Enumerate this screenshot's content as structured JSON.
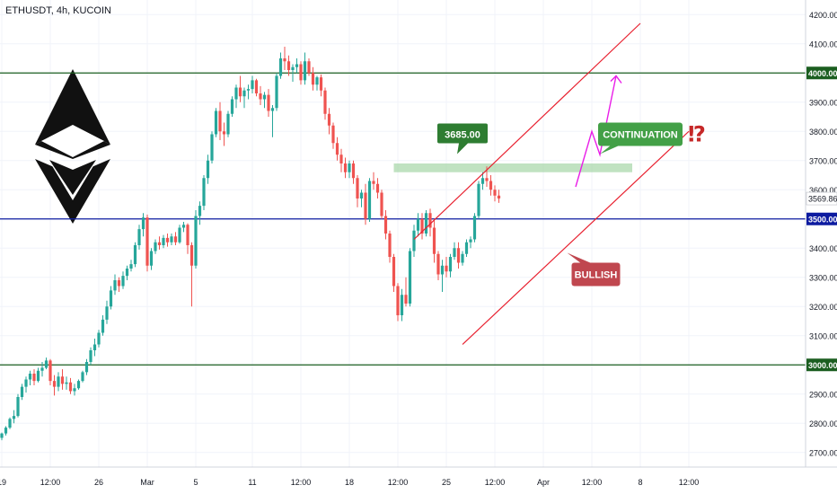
{
  "header": {
    "symbol_line": "ETHUSDT, 4h, KUCOIN"
  },
  "colors": {
    "bull": "#26a69a",
    "bear": "#ef5350",
    "level_green": "#1b5e20",
    "level_blue": "#0d1ba0",
    "channel": "#e8202f",
    "projection": "#e91ee8",
    "zone": "#a5d6a7",
    "callout_green": "#43a047",
    "callout_red": "#c0474f",
    "grid": "#f0f3fa"
  },
  "chart_data": {
    "type": "candlestick",
    "ylim": [
      2650,
      4250
    ],
    "y_ticks": [
      2700,
      2800,
      2900,
      3000,
      3100,
      3200,
      3300,
      3400,
      3500,
      3600,
      3700,
      3800,
      3900,
      4000,
      4100,
      4200
    ],
    "y_tick_labels": [
      "2700.00",
      "2800.00",
      "2900.00",
      "3000.00",
      "3100.00",
      "3200.00",
      "3300.00",
      "3400.00",
      "3500.00",
      "3600.00",
      "3700.00",
      "3800.00",
      "3900.00",
      "4000.00",
      "4100.00",
      "4200.00"
    ],
    "x_tick_labels": [
      "19",
      "12:00",
      "26",
      "Mar",
      "5",
      "11",
      "12:00",
      "18",
      "12:00",
      "25",
      "12:00",
      "Apr",
      "12:00",
      "8",
      "12:00"
    ],
    "x_tick_bars": [
      0,
      12,
      24,
      36,
      48,
      62,
      74,
      86,
      98,
      110,
      122,
      134,
      146,
      158,
      170
    ],
    "current_price": 3569.86,
    "current_price_label": "3569.86",
    "horizontal_levels": [
      {
        "price": 4000,
        "label": "4000.00",
        "color": "#1b5e20"
      },
      {
        "price": 3500,
        "label": "3500.00",
        "color": "#0d1ba0"
      },
      {
        "price": 3000,
        "label": "3000.00",
        "color": "#1b5e20"
      }
    ],
    "resistance_zone": {
      "price_low": 3660,
      "price_high": 3690,
      "bar_start": 97,
      "bar_end": 156,
      "label": "3685.00"
    },
    "channel_lines": [
      {
        "bar1": 102,
        "p1": 3430,
        "bar2": 158,
        "p2": 4170
      },
      {
        "bar1": 114,
        "p1": 3070,
        "bar2": 170,
        "p2": 3800
      }
    ],
    "projection_path": [
      [
        142,
        3610
      ],
      [
        146,
        3800
      ],
      [
        148,
        3720
      ],
      [
        152,
        3990
      ]
    ],
    "annotations": [
      {
        "text": "CONTINUATION",
        "bar": 158,
        "price": 3790,
        "color": "#43a047"
      },
      {
        "text": "BULLISH",
        "bar": 147,
        "price": 3310,
        "color": "#c0474f"
      },
      {
        "text": "⁉",
        "bar": 172,
        "price": 3790,
        "color": "#c62828"
      }
    ],
    "candles": [
      [
        2750,
        2768,
        2742,
        2765
      ],
      [
        2765,
        2790,
        2758,
        2785
      ],
      [
        2785,
        2820,
        2780,
        2815
      ],
      [
        2815,
        2845,
        2800,
        2825
      ],
      [
        2825,
        2900,
        2820,
        2890
      ],
      [
        2890,
        2935,
        2880,
        2925
      ],
      [
        2925,
        2960,
        2905,
        2950
      ],
      [
        2950,
        2980,
        2930,
        2970
      ],
      [
        2970,
        2985,
        2930,
        2945
      ],
      [
        2945,
        2990,
        2940,
        2980
      ],
      [
        2980,
        3010,
        2960,
        2990
      ],
      [
        2990,
        3025,
        2985,
        3015
      ],
      [
        3015,
        3020,
        2930,
        2945
      ],
      [
        2945,
        2965,
        2895,
        2925
      ],
      [
        2925,
        2975,
        2910,
        2960
      ],
      [
        2960,
        2985,
        2915,
        2935
      ],
      [
        2935,
        2960,
        2915,
        2940
      ],
      [
        2940,
        2955,
        2900,
        2910
      ],
      [
        2910,
        2935,
        2895,
        2920
      ],
      [
        2920,
        2950,
        2915,
        2945
      ],
      [
        2945,
        2980,
        2940,
        2975
      ],
      [
        2975,
        3020,
        2965,
        3010
      ],
      [
        3010,
        3060,
        3000,
        3050
      ],
      [
        3050,
        3090,
        3030,
        3070
      ],
      [
        3070,
        3120,
        3060,
        3110
      ],
      [
        3110,
        3170,
        3100,
        3155
      ],
      [
        3155,
        3220,
        3140,
        3200
      ],
      [
        3200,
        3270,
        3190,
        3255
      ],
      [
        3255,
        3310,
        3240,
        3290
      ],
      [
        3290,
        3300,
        3250,
        3270
      ],
      [
        3270,
        3320,
        3260,
        3305
      ],
      [
        3305,
        3340,
        3290,
        3330
      ],
      [
        3330,
        3360,
        3320,
        3345
      ],
      [
        3345,
        3420,
        3335,
        3410
      ],
      [
        3410,
        3480,
        3395,
        3465
      ],
      [
        3465,
        3520,
        3440,
        3505
      ],
      [
        3505,
        3515,
        3320,
        3340
      ],
      [
        3340,
        3400,
        3325,
        3390
      ],
      [
        3390,
        3430,
        3380,
        3420
      ],
      [
        3420,
        3440,
        3395,
        3410
      ],
      [
        3410,
        3445,
        3400,
        3435
      ],
      [
        3435,
        3450,
        3405,
        3420
      ],
      [
        3420,
        3450,
        3410,
        3440
      ],
      [
        3440,
        3455,
        3410,
        3420
      ],
      [
        3420,
        3480,
        3415,
        3470
      ],
      [
        3470,
        3490,
        3455,
        3480
      ],
      [
        3480,
        3485,
        3380,
        3410
      ],
      [
        3410,
        3420,
        3200,
        3340
      ],
      [
        3340,
        3530,
        3330,
        3510
      ],
      [
        3510,
        3560,
        3480,
        3545
      ],
      [
        3545,
        3650,
        3530,
        3640
      ],
      [
        3640,
        3720,
        3620,
        3700
      ],
      [
        3700,
        3800,
        3690,
        3790
      ],
      [
        3790,
        3880,
        3780,
        3870
      ],
      [
        3870,
        3900,
        3770,
        3800
      ],
      [
        3800,
        3830,
        3750,
        3790
      ],
      [
        3790,
        3870,
        3780,
        3860
      ],
      [
        3860,
        3920,
        3850,
        3910
      ],
      [
        3910,
        3960,
        3880,
        3950
      ],
      [
        3950,
        3990,
        3900,
        3920
      ],
      [
        3920,
        3950,
        3880,
        3940
      ],
      [
        3940,
        3960,
        3910,
        3945
      ],
      [
        3945,
        3990,
        3930,
        3975
      ],
      [
        3975,
        3980,
        3920,
        3930
      ],
      [
        3930,
        3955,
        3890,
        3910
      ],
      [
        3910,
        3935,
        3880,
        3925
      ],
      [
        3925,
        3945,
        3850,
        3870
      ],
      [
        3870,
        3890,
        3780,
        3880
      ],
      [
        3880,
        4000,
        3870,
        3990
      ],
      [
        3990,
        4070,
        3980,
        4050
      ],
      [
        4050,
        4090,
        4010,
        4040
      ],
      [
        4040,
        4060,
        3990,
        4010
      ],
      [
        4010,
        4030,
        3970,
        4020
      ],
      [
        4020,
        4050,
        4000,
        4030
      ],
      [
        4030,
        4040,
        3960,
        3975
      ],
      [
        3975,
        4070,
        3960,
        4040
      ],
      [
        4040,
        4050,
        3990,
        4000
      ],
      [
        4000,
        4020,
        3940,
        3960
      ],
      [
        3960,
        3990,
        3940,
        3985
      ],
      [
        3985,
        3995,
        3920,
        3940
      ],
      [
        3940,
        3950,
        3840,
        3860
      ],
      [
        3860,
        3880,
        3790,
        3820
      ],
      [
        3820,
        3830,
        3740,
        3760
      ],
      [
        3760,
        3780,
        3700,
        3720
      ],
      [
        3720,
        3740,
        3660,
        3690
      ],
      [
        3690,
        3710,
        3640,
        3660
      ],
      [
        3660,
        3700,
        3640,
        3690
      ],
      [
        3690,
        3700,
        3620,
        3640
      ],
      [
        3640,
        3650,
        3540,
        3570
      ],
      [
        3570,
        3600,
        3540,
        3590
      ],
      [
        3590,
        3620,
        3480,
        3500
      ],
      [
        3500,
        3640,
        3490,
        3630
      ],
      [
        3630,
        3660,
        3600,
        3620
      ],
      [
        3620,
        3640,
        3570,
        3590
      ],
      [
        3590,
        3600,
        3500,
        3510
      ],
      [
        3510,
        3530,
        3430,
        3450
      ],
      [
        3450,
        3460,
        3350,
        3370
      ],
      [
        3370,
        3380,
        3250,
        3270
      ],
      [
        3270,
        3280,
        3150,
        3170
      ],
      [
        3170,
        3260,
        3150,
        3240
      ],
      [
        3240,
        3300,
        3200,
        3210
      ],
      [
        3210,
        3400,
        3200,
        3390
      ],
      [
        3390,
        3480,
        3370,
        3460
      ],
      [
        3460,
        3520,
        3440,
        3500
      ],
      [
        3500,
        3520,
        3430,
        3450
      ],
      [
        3450,
        3530,
        3440,
        3520
      ],
      [
        3520,
        3535,
        3440,
        3470
      ],
      [
        3470,
        3500,
        3350,
        3380
      ],
      [
        3380,
        3390,
        3290,
        3310
      ],
      [
        3310,
        3360,
        3250,
        3340
      ],
      [
        3340,
        3370,
        3300,
        3320
      ],
      [
        3320,
        3380,
        3300,
        3370
      ],
      [
        3370,
        3420,
        3360,
        3400
      ],
      [
        3400,
        3420,
        3330,
        3350
      ],
      [
        3350,
        3390,
        3340,
        3380
      ],
      [
        3380,
        3430,
        3370,
        3420
      ],
      [
        3420,
        3440,
        3400,
        3430
      ],
      [
        3430,
        3520,
        3420,
        3510
      ],
      [
        3510,
        3630,
        3500,
        3620
      ],
      [
        3620,
        3660,
        3600,
        3640
      ],
      [
        3640,
        3680,
        3610,
        3630
      ],
      [
        3630,
        3650,
        3580,
        3600
      ],
      [
        3600,
        3615,
        3560,
        3580
      ],
      [
        3580,
        3600,
        3555,
        3570
      ]
    ]
  }
}
